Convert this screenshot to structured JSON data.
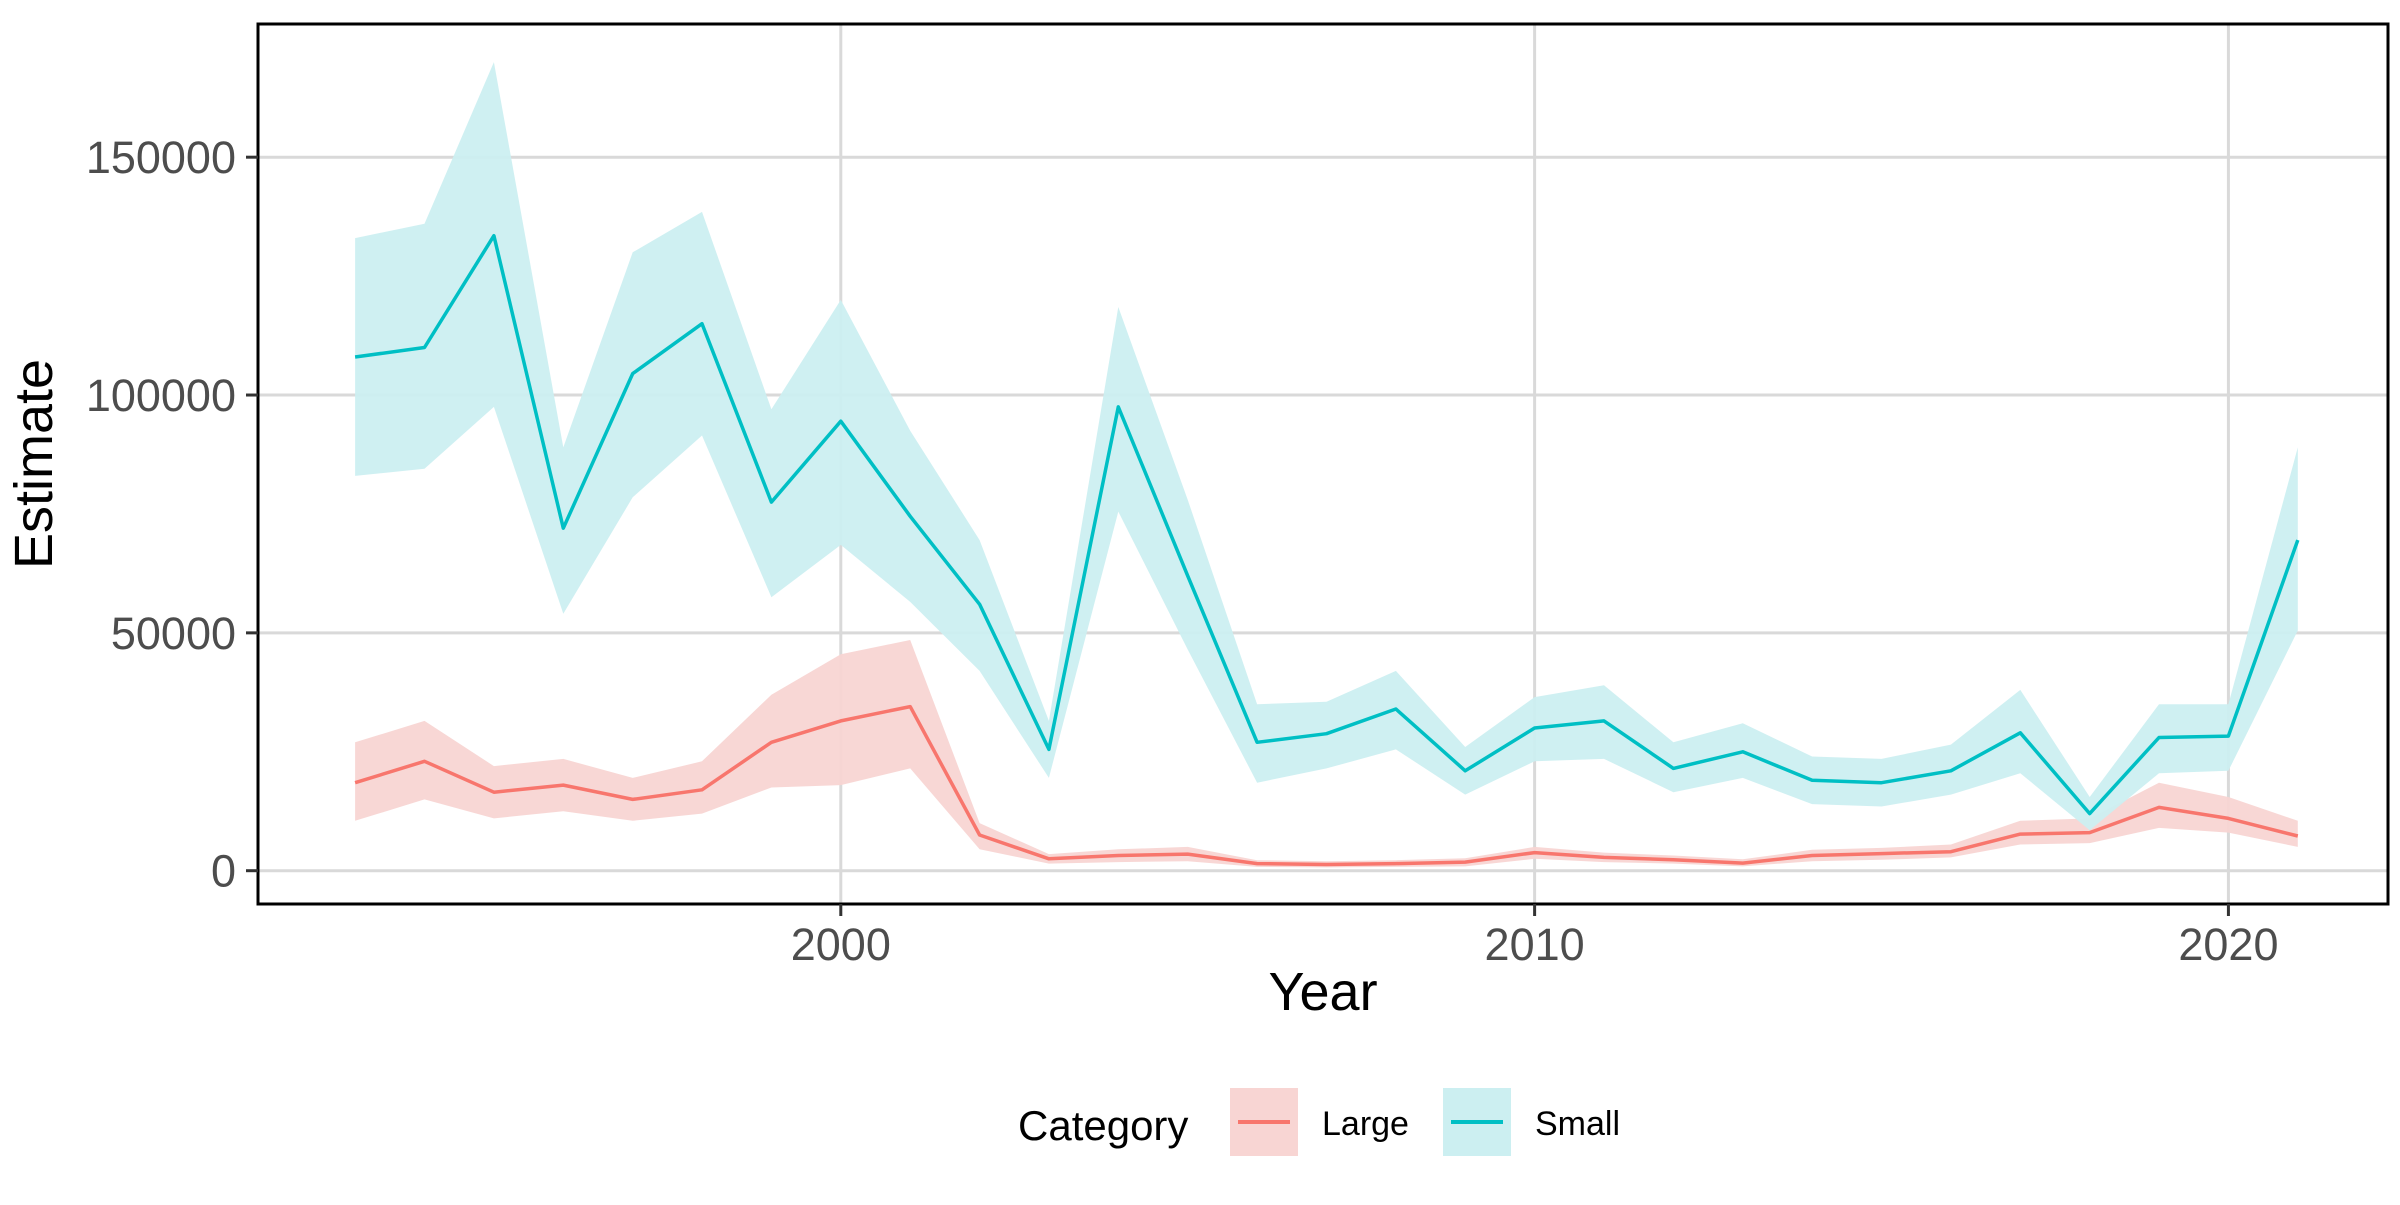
{
  "chart_data": {
    "type": "line",
    "title": "",
    "xlabel": "Year",
    "ylabel": "Estimate",
    "xlim": [
      1991.6,
      2022.3
    ],
    "ylim": [
      -7000,
      178000
    ],
    "x_ticks": [
      2000,
      2010,
      2020
    ],
    "y_ticks": [
      0,
      50000,
      100000,
      150000
    ],
    "grid": true,
    "legend": {
      "title": "Category",
      "position": "bottom",
      "entries": [
        "Large",
        "Small"
      ]
    },
    "x": [
      1993,
      1994,
      1995,
      1996,
      1997,
      1998,
      1999,
      2000,
      2001,
      2002,
      2003,
      2004,
      2005,
      2006,
      2007,
      2008,
      2009,
      2010,
      2011,
      2012,
      2013,
      2014,
      2015,
      2016,
      2017,
      2018,
      2019,
      2020,
      2021
    ],
    "series": [
      {
        "name": "Large",
        "color": "#F8766D",
        "fill": "#F8D5D3",
        "values": [
          18500,
          23000,
          16500,
          18000,
          15000,
          17000,
          27000,
          31500,
          34500,
          7500,
          2500,
          3200,
          3500,
          1500,
          1300,
          1500,
          1800,
          3800,
          2800,
          2300,
          1600,
          3200,
          3600,
          4000,
          7700,
          8000,
          13300,
          11000,
          7300
        ],
        "lower": [
          10500,
          15000,
          11000,
          12500,
          10500,
          12000,
          17500,
          18000,
          21500,
          4500,
          1500,
          1800,
          2000,
          800,
          700,
          800,
          900,
          2500,
          1800,
          1500,
          900,
          2000,
          2300,
          2800,
          5500,
          5800,
          9000,
          8000,
          5000
        ],
        "upper": [
          27000,
          31500,
          22000,
          23500,
          19500,
          23000,
          37000,
          45500,
          48500,
          10000,
          3500,
          4500,
          5000,
          2200,
          2000,
          2200,
          2600,
          5000,
          3800,
          3200,
          2400,
          4400,
          4800,
          5500,
          10500,
          11000,
          18500,
          15500,
          10500
        ]
      },
      {
        "name": "Small",
        "color": "#00BFC4",
        "fill": "#CCEFF1",
        "values": [
          108000,
          110000,
          133500,
          72000,
          104500,
          115000,
          77500,
          94500,
          74500,
          56000,
          25500,
          97500,
          62000,
          27000,
          28800,
          34000,
          21000,
          30000,
          31500,
          21500,
          25000,
          19000,
          18500,
          21000,
          29000,
          12000,
          28000,
          28300,
          69500
        ],
        "lower": [
          83000,
          84500,
          97500,
          54000,
          78500,
          91500,
          57500,
          68500,
          56500,
          42000,
          19500,
          75500,
          46500,
          18500,
          21500,
          25500,
          16000,
          23000,
          23500,
          16500,
          19500,
          14000,
          13500,
          16000,
          20500,
          8500,
          20500,
          21000,
          50500
        ],
        "upper": [
          133000,
          136000,
          170000,
          89000,
          130000,
          138500,
          97000,
          120000,
          92500,
          69500,
          31500,
          118500,
          78000,
          35000,
          35500,
          42000,
          26000,
          36500,
          39000,
          27000,
          31000,
          24000,
          23500,
          26500,
          38000,
          15500,
          35000,
          35000,
          89000
        ]
      }
    ]
  }
}
